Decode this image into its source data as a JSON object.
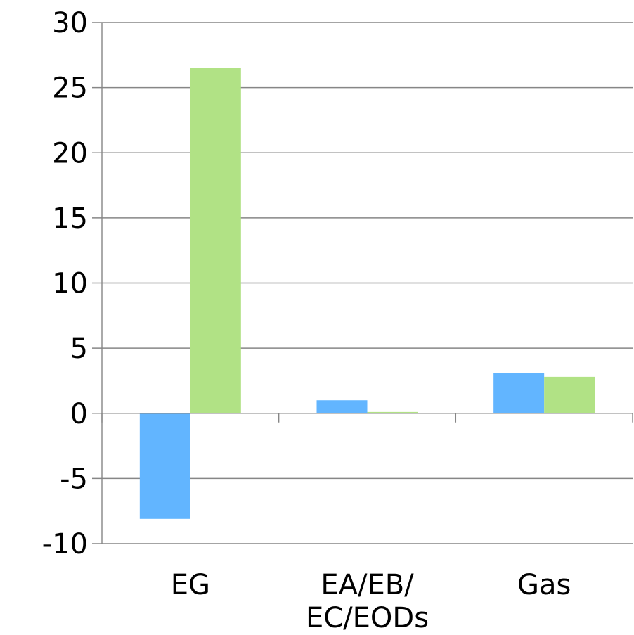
{
  "chart_data": {
    "type": "bar",
    "categories": [
      [
        "EG"
      ],
      [
        "EA/EB/",
        "EC/EODs"
      ],
      [
        "Gas"
      ]
    ],
    "series": [
      {
        "values": [
          -8.1,
          1.0,
          3.1
        ],
        "color": "#62b5ff"
      },
      {
        "values": [
          26.5,
          0.1,
          2.8
        ],
        "color": "#b1e285"
      }
    ],
    "y_ticks": [
      "30",
      "25",
      "20",
      "15",
      "10",
      "5",
      "0",
      "-5",
      "-10"
    ],
    "y_tick_values": [
      30,
      25,
      20,
      15,
      10,
      5,
      0,
      -5,
      -10
    ],
    "ylim": [
      -10,
      30
    ],
    "grid": true,
    "legend": "none"
  }
}
